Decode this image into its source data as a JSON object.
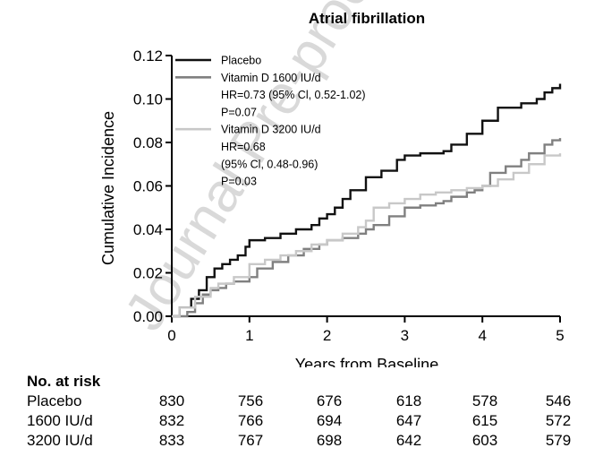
{
  "watermark": "Journal Pre-proof",
  "chart_data": {
    "type": "line",
    "step": true,
    "title": "Atrial fibrillation",
    "xlabel": "Years from Baseline",
    "ylabel": "Cumulative Incidence",
    "xlim": [
      0,
      5
    ],
    "ylim": [
      0,
      0.12
    ],
    "xticks": [
      "0",
      "1",
      "2",
      "3",
      "4",
      "5"
    ],
    "yticks": [
      "0.00",
      "0.02",
      "0.04",
      "0.06",
      "0.08",
      "0.10",
      "0.12"
    ],
    "series": [
      {
        "name": "Placebo",
        "color": "#111111",
        "x": [
          0,
          0.1,
          0.25,
          0.35,
          0.45,
          0.55,
          0.65,
          0.75,
          0.85,
          0.95,
          1.0,
          1.2,
          1.4,
          1.6,
          1.8,
          1.9,
          2.0,
          2.1,
          2.2,
          2.3,
          2.5,
          2.7,
          2.9,
          3.0,
          3.2,
          3.4,
          3.5,
          3.6,
          3.8,
          4.0,
          4.2,
          4.5,
          4.7,
          4.8,
          4.9,
          5.0
        ],
        "y": [
          0,
          0.004,
          0.008,
          0.012,
          0.018,
          0.022,
          0.024,
          0.026,
          0.028,
          0.032,
          0.035,
          0.036,
          0.038,
          0.04,
          0.042,
          0.045,
          0.047,
          0.05,
          0.054,
          0.058,
          0.064,
          0.067,
          0.072,
          0.074,
          0.075,
          0.075,
          0.076,
          0.079,
          0.084,
          0.09,
          0.096,
          0.098,
          0.1,
          0.103,
          0.105,
          0.107
        ]
      },
      {
        "name": "Vitamin D 1600 IU/d",
        "color": "#808080",
        "x": [
          0,
          0.2,
          0.3,
          0.4,
          0.5,
          0.6,
          0.7,
          0.8,
          1.0,
          1.1,
          1.3,
          1.5,
          1.7,
          1.9,
          2.0,
          2.2,
          2.4,
          2.5,
          2.6,
          2.8,
          3.0,
          3.2,
          3.4,
          3.5,
          3.6,
          3.8,
          3.9,
          4.0,
          4.1,
          4.3,
          4.5,
          4.6,
          4.8,
          4.9,
          5.0
        ],
        "y": [
          0,
          0.002,
          0.006,
          0.01,
          0.012,
          0.013,
          0.015,
          0.016,
          0.018,
          0.022,
          0.025,
          0.028,
          0.031,
          0.033,
          0.035,
          0.036,
          0.038,
          0.04,
          0.042,
          0.046,
          0.05,
          0.051,
          0.052,
          0.053,
          0.055,
          0.057,
          0.058,
          0.06,
          0.066,
          0.069,
          0.072,
          0.075,
          0.079,
          0.081,
          0.082
        ]
      },
      {
        "name": "Vitamin D 3200 IU/d",
        "color": "#c8c8c8",
        "x": [
          0,
          0.1,
          0.3,
          0.5,
          0.6,
          0.8,
          1.0,
          1.2,
          1.4,
          1.6,
          1.8,
          2.0,
          2.2,
          2.4,
          2.5,
          2.6,
          2.8,
          3.0,
          3.2,
          3.4,
          3.6,
          3.8,
          4.0,
          4.2,
          4.4,
          4.6,
          4.8,
          5.0
        ],
        "y": [
          0,
          0.004,
          0.009,
          0.013,
          0.015,
          0.018,
          0.024,
          0.026,
          0.028,
          0.03,
          0.033,
          0.035,
          0.038,
          0.041,
          0.044,
          0.05,
          0.052,
          0.054,
          0.056,
          0.057,
          0.058,
          0.059,
          0.06,
          0.063,
          0.066,
          0.07,
          0.074,
          0.075
        ]
      }
    ],
    "legend": [
      {
        "label": "Placebo"
      },
      {
        "label": "Vitamin D 1600 IU/d",
        "lines": [
          "HR=0.73 (95% Cl, 0.52-1.02)",
          "P=0.07"
        ]
      },
      {
        "label": "Vitamin D 3200 IU/d",
        "lines": [
          "HR=0.68",
          "(95% Cl, 0.48-0.96)",
          "P=0.03"
        ]
      }
    ]
  },
  "risk_table": {
    "title": "No. at risk",
    "rows": [
      {
        "label": "Placebo",
        "values": [
          "830",
          "756",
          "676",
          "618",
          "578",
          "546"
        ]
      },
      {
        "label": "1600 IU/d",
        "values": [
          "832",
          "766",
          "694",
          "647",
          "615",
          "572"
        ]
      },
      {
        "label": "3200 IU/d",
        "values": [
          "833",
          "767",
          "698",
          "642",
          "603",
          "579"
        ]
      }
    ]
  }
}
